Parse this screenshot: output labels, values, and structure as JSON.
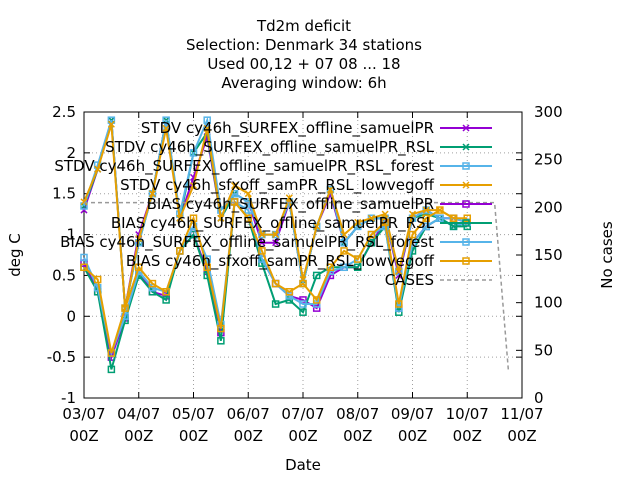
{
  "chart_data": {
    "type": "line",
    "title_lines": [
      "Td2m deficit",
      "Selection: Denmark      34 stations",
      "Used  00,12  + 07 08 ... 18",
      "Averaging window:  6h"
    ],
    "xlabel": "Date",
    "ylabel": "deg C",
    "y2label": "No cases",
    "ylim": [
      -1,
      2.5
    ],
    "y2lim": [
      0,
      300
    ],
    "y_ticks": [
      "-1",
      "-0.5",
      "0",
      "0.5",
      "1",
      "1.5",
      "2",
      "2.5"
    ],
    "y2_ticks": [
      "0",
      "50",
      "100",
      "150",
      "200",
      "250",
      "300"
    ],
    "x_ticks": [
      {
        "day": "03/07",
        "hour": "00Z"
      },
      {
        "day": "04/07",
        "hour": "00Z"
      },
      {
        "day": "05/07",
        "hour": "00Z"
      },
      {
        "day": "06/07",
        "hour": "00Z"
      },
      {
        "day": "07/07",
        "hour": "00Z"
      },
      {
        "day": "08/07",
        "hour": "00Z"
      },
      {
        "day": "09/07",
        "hour": "00Z"
      },
      {
        "day": "10/07",
        "hour": "00Z"
      },
      {
        "day": "11/07",
        "hour": "00Z"
      }
    ],
    "x_hours": [
      0,
      6,
      12,
      18,
      24,
      30,
      36,
      42,
      48,
      54,
      60,
      66,
      72,
      78,
      84,
      90,
      96,
      102,
      108,
      114,
      120,
      126,
      132,
      138,
      144,
      150,
      156,
      162,
      168,
      174,
      180,
      186
    ],
    "series": [
      {
        "name": "STDV cy46h_SURFEX_offline_samuelPR",
        "color": "#9400d3",
        "marker": "x",
        "axis": "y1",
        "values": [
          1.3,
          1.8,
          2.4,
          0.1,
          1.0,
          1.5,
          2.4,
          1.2,
          1.7,
          2.2,
          1.2,
          1.5,
          1.4,
          0.9,
          0.9,
          1.4,
          0.4,
          1.1,
          1.5,
          0.9,
          1.1,
          1.2,
          1.2,
          0.5,
          1.2,
          1.3,
          1.2,
          1.1,
          1.15,
          null,
          null,
          null
        ]
      },
      {
        "name": "STDV cy46h_SURFEX_offline_samuelPR_RSL",
        "color": "#009e73",
        "marker": "x",
        "axis": "y1",
        "values": [
          1.35,
          1.8,
          2.4,
          0.1,
          0.9,
          1.5,
          2.4,
          1.2,
          2.0,
          2.25,
          1.2,
          1.5,
          1.4,
          1.0,
          1.0,
          1.4,
          0.4,
          1.1,
          1.55,
          0.9,
          1.1,
          1.2,
          1.2,
          0.55,
          1.2,
          1.25,
          1.2,
          1.1,
          1.15,
          null,
          null,
          null
        ]
      },
      {
        "name": "STDV cy46h_SURFEX_offline_samuelPR_RSL_forest",
        "color": "#56b4e9",
        "marker": "square",
        "axis": "y1",
        "values": [
          1.35,
          1.85,
          2.4,
          0.1,
          0.9,
          1.5,
          2.4,
          1.25,
          2.0,
          2.4,
          1.3,
          1.5,
          1.4,
          1.0,
          1.0,
          1.4,
          0.4,
          1.1,
          1.55,
          0.9,
          1.1,
          1.2,
          1.2,
          0.55,
          1.2,
          1.3,
          1.2,
          1.1,
          1.15,
          null,
          null,
          null
        ]
      },
      {
        "name": "STDV cy46h_sfxoff_samPR_RSL_lowvegoff",
        "color": "#e69f00",
        "marker": "x",
        "axis": "y1",
        "values": [
          1.4,
          1.8,
          2.35,
          0.1,
          0.95,
          1.5,
          2.3,
          1.2,
          1.6,
          2.3,
          1.2,
          1.6,
          1.5,
          1.0,
          1.0,
          1.45,
          0.45,
          1.1,
          1.55,
          1.0,
          1.15,
          1.2,
          1.25,
          0.55,
          1.25,
          1.3,
          1.3,
          1.2,
          1.15,
          null,
          null,
          null
        ]
      },
      {
        "name": "BIAS cy46h_SURFEX_offline_samuelPR",
        "color": "#9400d3",
        "marker": "square",
        "axis": "y1",
        "values": [
          0.65,
          0.3,
          -0.5,
          -0.02,
          0.55,
          0.3,
          0.25,
          0.8,
          1.0,
          0.55,
          -0.2,
          1.4,
          1.2,
          0.7,
          0.4,
          0.25,
          0.2,
          0.1,
          0.5,
          0.6,
          0.6,
          0.9,
          1.15,
          0.1,
          0.9,
          1.1,
          1.2,
          1.2,
          1.15,
          null,
          null,
          null
        ]
      },
      {
        "name": "BIAS cy46h_SURFEX_offline_samuelPR_RSL",
        "color": "#009e73",
        "marker": "square",
        "axis": "y1",
        "values": [
          0.6,
          0.3,
          -0.65,
          -0.05,
          0.5,
          0.3,
          0.2,
          0.8,
          1.0,
          0.5,
          -0.3,
          1.4,
          1.2,
          0.65,
          0.15,
          0.2,
          0.05,
          0.5,
          0.6,
          0.6,
          0.6,
          0.9,
          1.1,
          0.05,
          0.8,
          1.1,
          1.2,
          1.1,
          1.1,
          null,
          null,
          null
        ]
      },
      {
        "name": "BIAS cy46h_SURFEX_offline_samuelPR_RSL_forest",
        "color": "#56b4e9",
        "marker": "square",
        "axis": "y1",
        "values": [
          0.72,
          0.35,
          -0.45,
          0.0,
          0.55,
          0.35,
          0.3,
          0.8,
          1.1,
          0.7,
          -0.1,
          1.4,
          1.3,
          0.7,
          0.4,
          0.25,
          0.15,
          0.15,
          0.55,
          0.6,
          0.7,
          1.0,
          1.1,
          0.1,
          0.9,
          1.1,
          1.2,
          1.2,
          1.15,
          null,
          null,
          null
        ]
      },
      {
        "name": "BIAS cy46h_sfxoff_samPR_RSL_lowvegoff",
        "color": "#e69f00",
        "marker": "square",
        "axis": "y1",
        "values": [
          0.6,
          0.45,
          -0.45,
          0.1,
          0.6,
          0.4,
          0.3,
          0.8,
          1.2,
          0.6,
          -0.15,
          1.4,
          1.2,
          0.8,
          0.4,
          0.3,
          0.4,
          0.2,
          0.6,
          0.8,
          0.7,
          1.0,
          1.15,
          0.15,
          1.0,
          1.2,
          1.3,
          1.2,
          1.2,
          null,
          null,
          null
        ]
      },
      {
        "name": "CASES",
        "color": "#999999",
        "marker": "none",
        "dash": true,
        "axis": "y2",
        "values": [
          205,
          205,
          205,
          205,
          205,
          205,
          205,
          205,
          205,
          205,
          205,
          205,
          205,
          205,
          205,
          205,
          205,
          205,
          205,
          205,
          205,
          205,
          205,
          205,
          205,
          205,
          205,
          205,
          205,
          205,
          205,
          30
        ]
      }
    ],
    "legend_position": "top-right",
    "grid": true,
    "grid_style": "dotted vertical lines at day boundaries"
  }
}
